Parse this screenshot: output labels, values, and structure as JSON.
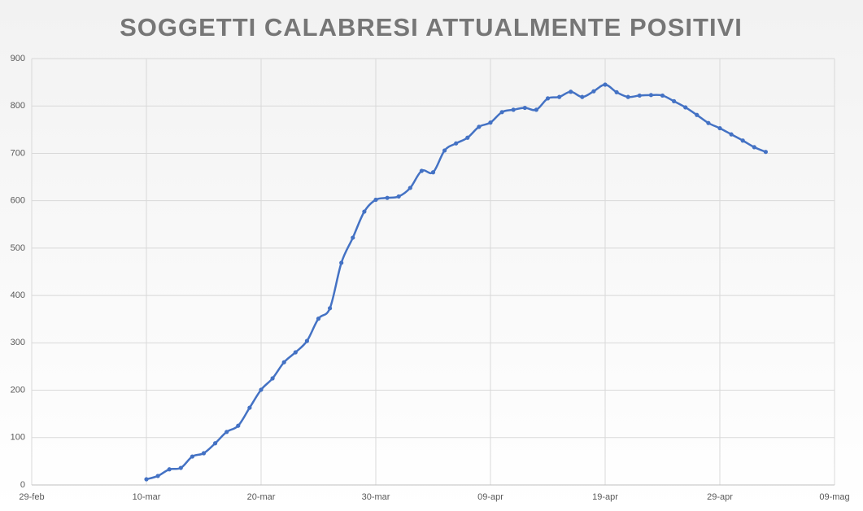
{
  "chart_data": {
    "type": "line",
    "title": "SOGGETTI CALABRESI ATTUALMENTE POSITIVI",
    "x": [
      "10-mar",
      "11-mar",
      "12-mar",
      "13-mar",
      "14-mar",
      "15-mar",
      "16-mar",
      "17-mar",
      "18-mar",
      "19-mar",
      "20-mar",
      "21-mar",
      "22-mar",
      "23-mar",
      "24-mar",
      "25-mar",
      "26-mar",
      "27-mar",
      "28-mar",
      "29-mar",
      "30-mar",
      "31-mar",
      "01-apr",
      "02-apr",
      "03-apr",
      "04-apr",
      "05-apr",
      "06-apr",
      "07-apr",
      "08-apr",
      "09-apr",
      "10-apr",
      "11-apr",
      "12-apr",
      "13-apr",
      "14-apr",
      "15-apr",
      "16-apr",
      "17-apr",
      "18-apr",
      "19-apr",
      "20-apr",
      "21-apr",
      "22-apr",
      "23-apr",
      "24-apr",
      "25-apr",
      "26-apr",
      "27-apr",
      "28-apr",
      "29-apr",
      "30-apr",
      "01-mag",
      "02-mag",
      "03-mag"
    ],
    "series": [
      {
        "color": "#4472c4",
        "values": [
          12,
          19,
          33,
          36,
          60,
          67,
          88,
          112,
          125,
          163,
          201,
          225,
          259,
          280,
          304,
          351,
          373,
          469,
          522,
          577,
          602,
          606,
          609,
          627,
          663,
          660,
          706,
          721,
          733,
          756,
          765,
          787,
          792,
          796,
          792,
          816,
          819,
          830,
          819,
          831,
          845,
          829,
          819,
          822,
          823,
          822,
          810,
          797,
          781,
          764,
          753,
          740,
          727,
          713,
          703
        ]
      }
    ],
    "xlim": [
      "29-feb",
      "09-mag"
    ],
    "xticks": [
      "29-feb",
      "10-mar",
      "20-mar",
      "30-mar",
      "09-apr",
      "19-apr",
      "29-apr",
      "09-mag"
    ],
    "ylim": [
      0,
      900
    ],
    "yticks": [
      0,
      100,
      200,
      300,
      400,
      500,
      600,
      700,
      800,
      900
    ],
    "grid": true
  }
}
